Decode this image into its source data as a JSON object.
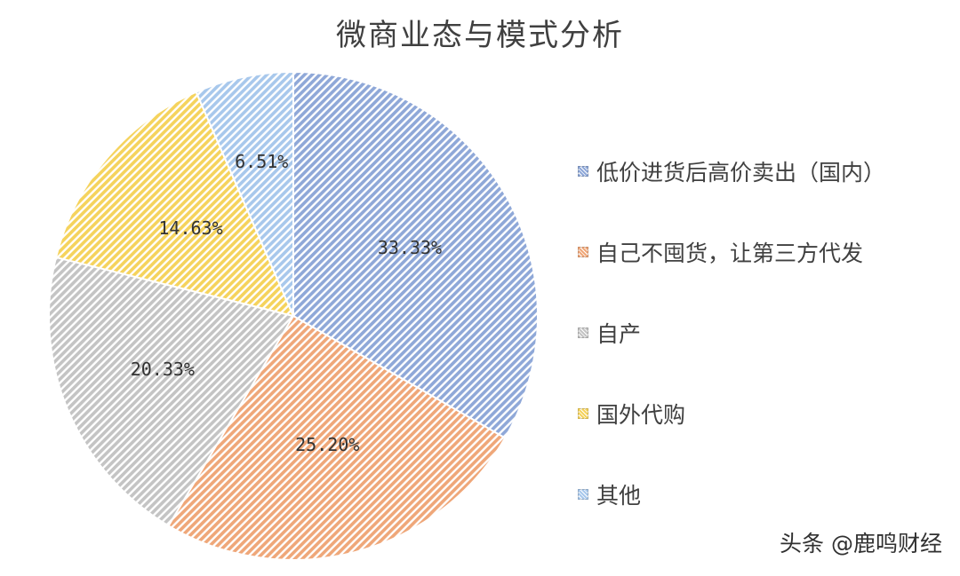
{
  "chart_data": {
    "type": "pie",
    "title": "微商业态与模式分析",
    "slices": [
      {
        "label": "低价进货后高价卖出（国内）",
        "value": 33.33,
        "display": "33.33%",
        "color": "#8fa8d8"
      },
      {
        "label": "自己不囤货，让第三方代发",
        "value": 25.2,
        "display": "25.20%",
        "color": "#efa779"
      },
      {
        "label": "自产",
        "value": 20.33,
        "display": "20.33%",
        "color": "#c4c4c4"
      },
      {
        "label": "国外代购",
        "value": 14.63,
        "display": "14.63%",
        "color": "#f5d35d"
      },
      {
        "label": "其他",
        "value": 6.51,
        "display": "6.51%",
        "color": "#a8c8ec"
      }
    ],
    "legend_position": "right"
  },
  "watermark": "头条 @鹿鸣财经"
}
